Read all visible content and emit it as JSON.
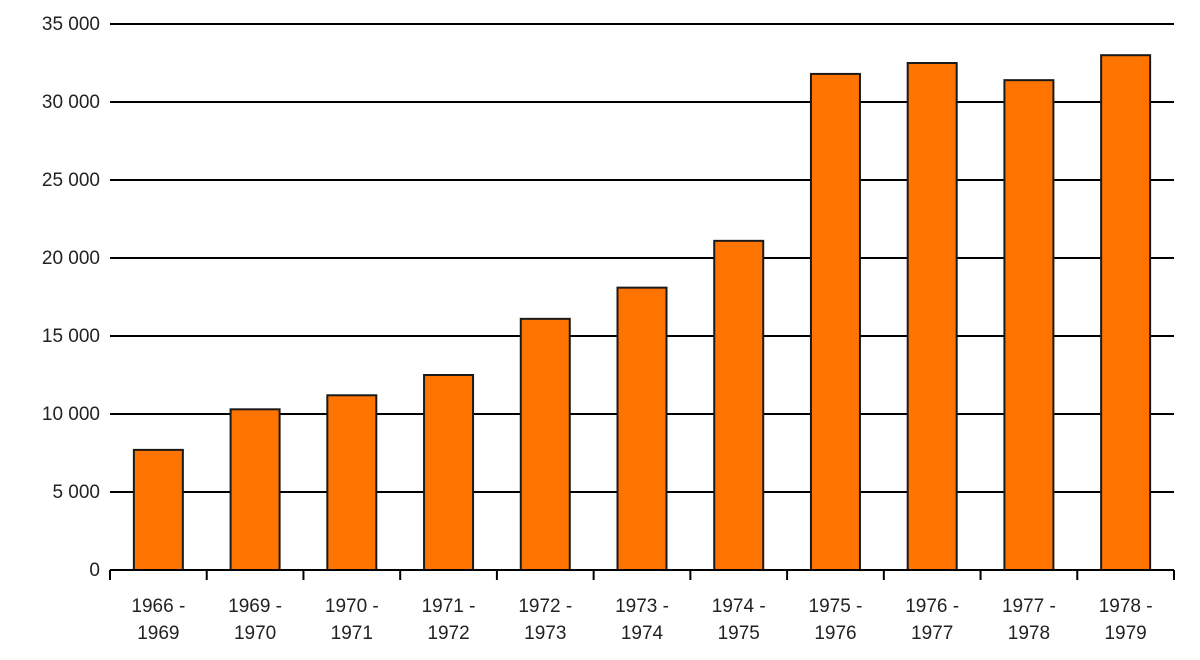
{
  "chart_data": {
    "type": "bar",
    "title": "",
    "xlabel": "",
    "ylabel": "",
    "ylim": [
      0,
      35000
    ],
    "yticks": [
      0,
      5000,
      10000,
      15000,
      20000,
      25000,
      30000,
      35000
    ],
    "ytick_labels": [
      "0",
      "5 000",
      "10 000",
      "15 000",
      "20 000",
      "25 000",
      "30 000",
      "35 000"
    ],
    "grid": true,
    "categories": [
      [
        "1966 -",
        "1969"
      ],
      [
        "1969 -",
        "1970"
      ],
      [
        "1970 -",
        "1971"
      ],
      [
        "1971 -",
        "1972"
      ],
      [
        "1972 -",
        "1973"
      ],
      [
        "1973 -",
        "1974"
      ],
      [
        "1974 -",
        "1975"
      ],
      [
        "1975 -",
        "1976"
      ],
      [
        "1976 -",
        "1977"
      ],
      [
        "1977 -",
        "1978"
      ],
      [
        "1978 -",
        "1979"
      ]
    ],
    "values": [
      7700,
      10300,
      11200,
      12500,
      16100,
      18100,
      21100,
      31800,
      32500,
      31400,
      33000
    ],
    "colors": {
      "bar": "#ff7300",
      "bar_stroke": "#1a1a1a",
      "grid": "#000000",
      "axis": "#000000"
    }
  }
}
